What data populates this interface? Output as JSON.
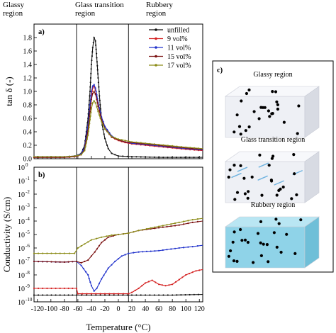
{
  "regions": [
    "Glassy\nregion",
    "Glass transition\nregion",
    "Rubbery\nregion"
  ],
  "region_boundaries": [
    -62,
    15
  ],
  "panel_labels": [
    "a)",
    "b)",
    "c)"
  ],
  "colors": {
    "unfilled": "#111111",
    "9 vol%": "#d42020",
    "11 vol%": "#2233cc",
    "15 vol%": "#7a1010",
    "17 vol%": "#8c8c18",
    "box_light": "#eef0f5",
    "box_blue": "#8fd3e8"
  },
  "chart_data": [
    {
      "type": "line",
      "panel": "a)",
      "ylabel": "tan δ (-)",
      "xlim": [
        -125,
        125
      ],
      "ylim": [
        0,
        2.0
      ],
      "xticks": [
        -120,
        -100,
        -80,
        -60,
        -40,
        -20,
        0,
        20,
        40,
        60,
        80,
        100,
        120
      ],
      "yticks": [
        0.0,
        0.2,
        0.4,
        0.6,
        0.8,
        1.0,
        1.2,
        1.4,
        1.6,
        1.8
      ],
      "yticklabels": [
        "0.0",
        "0.2",
        "0.4",
        "0.6",
        "0.8",
        "1.0",
        "1.2",
        "1.4",
        "1.6",
        "1.8"
      ],
      "legend_position": "top-right",
      "series": [
        {
          "name": "unfilled",
          "points": [
            [
              -125,
              0.02
            ],
            [
              -80,
              0.02
            ],
            [
              -65,
              0.03
            ],
            [
              -55,
              0.08
            ],
            [
              -50,
              0.2
            ],
            [
              -45,
              0.6
            ],
            [
              -42,
              1.0
            ],
            [
              -40,
              1.4
            ],
            [
              -38,
              1.65
            ],
            [
              -36,
              1.8
            ],
            [
              -34,
              1.75
            ],
            [
              -32,
              1.5
            ],
            [
              -30,
              1.2
            ],
            [
              -27,
              0.8
            ],
            [
              -24,
              0.5
            ],
            [
              -20,
              0.3
            ],
            [
              -15,
              0.15
            ],
            [
              -10,
              0.08
            ],
            [
              0,
              0.04
            ],
            [
              20,
              0.03
            ],
            [
              60,
              0.02
            ],
            [
              125,
              0.02
            ]
          ]
        },
        {
          "name": "9 vol%",
          "points": [
            [
              -125,
              0.02
            ],
            [
              -80,
              0.02
            ],
            [
              -65,
              0.03
            ],
            [
              -55,
              0.06
            ],
            [
              -50,
              0.15
            ],
            [
              -45,
              0.45
            ],
            [
              -42,
              0.75
            ],
            [
              -40,
              0.95
            ],
            [
              -38,
              1.05
            ],
            [
              -36,
              1.08
            ],
            [
              -34,
              1.02
            ],
            [
              -32,
              0.92
            ],
            [
              -30,
              0.8
            ],
            [
              -25,
              0.6
            ],
            [
              -20,
              0.45
            ],
            [
              -10,
              0.32
            ],
            [
              0,
              0.27
            ],
            [
              10,
              0.24
            ],
            [
              20,
              0.22
            ],
            [
              40,
              0.2
            ],
            [
              60,
              0.18
            ],
            [
              80,
              0.16
            ],
            [
              100,
              0.14
            ],
            [
              125,
              0.12
            ]
          ]
        },
        {
          "name": "11 vol%",
          "points": [
            [
              -125,
              0.03
            ],
            [
              -80,
              0.03
            ],
            [
              -65,
              0.04
            ],
            [
              -55,
              0.07
            ],
            [
              -50,
              0.17
            ],
            [
              -45,
              0.5
            ],
            [
              -42,
              0.8
            ],
            [
              -40,
              1.0
            ],
            [
              -38,
              1.08
            ],
            [
              -36,
              1.1
            ],
            [
              -34,
              1.05
            ],
            [
              -32,
              0.95
            ],
            [
              -30,
              0.83
            ],
            [
              -25,
              0.62
            ],
            [
              -20,
              0.48
            ],
            [
              -10,
              0.34
            ],
            [
              0,
              0.28
            ],
            [
              10,
              0.25
            ],
            [
              20,
              0.23
            ],
            [
              40,
              0.21
            ],
            [
              60,
              0.19
            ],
            [
              80,
              0.17
            ],
            [
              100,
              0.15
            ],
            [
              125,
              0.13
            ]
          ]
        },
        {
          "name": "15 vol%",
          "points": [
            [
              -125,
              0.02
            ],
            [
              -80,
              0.02
            ],
            [
              -65,
              0.03
            ],
            [
              -55,
              0.06
            ],
            [
              -50,
              0.14
            ],
            [
              -45,
              0.42
            ],
            [
              -42,
              0.7
            ],
            [
              -40,
              0.88
            ],
            [
              -38,
              0.97
            ],
            [
              -36,
              1.0
            ],
            [
              -34,
              0.96
            ],
            [
              -32,
              0.88
            ],
            [
              -30,
              0.78
            ],
            [
              -25,
              0.58
            ],
            [
              -20,
              0.45
            ],
            [
              -10,
              0.32
            ],
            [
              0,
              0.28
            ],
            [
              10,
              0.25
            ],
            [
              20,
              0.24
            ],
            [
              40,
              0.22
            ],
            [
              60,
              0.2
            ],
            [
              80,
              0.18
            ],
            [
              100,
              0.16
            ],
            [
              125,
              0.14
            ]
          ]
        },
        {
          "name": "17 vol%",
          "points": [
            [
              -125,
              0.03
            ],
            [
              -80,
              0.03
            ],
            [
              -65,
              0.04
            ],
            [
              -55,
              0.06
            ],
            [
              -50,
              0.12
            ],
            [
              -45,
              0.35
            ],
            [
              -42,
              0.58
            ],
            [
              -40,
              0.74
            ],
            [
              -38,
              0.83
            ],
            [
              -36,
              0.86
            ],
            [
              -34,
              0.83
            ],
            [
              -32,
              0.77
            ],
            [
              -30,
              0.7
            ],
            [
              -25,
              0.55
            ],
            [
              -20,
              0.44
            ],
            [
              -10,
              0.33
            ],
            [
              0,
              0.29
            ],
            [
              10,
              0.27
            ],
            [
              20,
              0.25
            ],
            [
              40,
              0.23
            ],
            [
              60,
              0.21
            ],
            [
              80,
              0.19
            ],
            [
              100,
              0.17
            ],
            [
              125,
              0.15
            ]
          ]
        }
      ]
    },
    {
      "type": "line",
      "panel": "b)",
      "xlabel": "Temperature (°C)",
      "ylabel": "Conductivity (S/cm)",
      "yscale": "log",
      "xlim": [
        -125,
        125
      ],
      "ylim_exponent": [
        -10,
        0
      ],
      "xticks": [
        -120,
        -100,
        -80,
        -60,
        -40,
        -20,
        0,
        20,
        40,
        60,
        80,
        100,
        120
      ],
      "yticks_exponent": [
        -10,
        -9,
        -8,
        -7,
        -6,
        -5,
        -4,
        -3,
        -2,
        -1,
        0
      ],
      "yticklabels": [
        "10",
        "10",
        "10",
        "10",
        "10",
        "10",
        "10",
        "10",
        "10",
        "10",
        "10"
      ],
      "yticklabel_exponents": [
        "-10",
        "-9",
        "-8",
        "-7",
        "-6",
        "-5",
        "-4",
        "-3",
        "-2",
        "-1",
        "0"
      ],
      "series": [
        {
          "name": "unfilled",
          "points_log10": [
            [
              -125,
              -9.5
            ],
            [
              -80,
              -9.5
            ],
            [
              -62,
              -9.5
            ],
            [
              -40,
              -9.5
            ],
            [
              0,
              -9.5
            ],
            [
              40,
              -9.5
            ],
            [
              80,
              -9.5
            ],
            [
              125,
              -9.45
            ]
          ]
        },
        {
          "name": "9 vol%",
          "points_log10": [
            [
              -125,
              -9.0
            ],
            [
              -80,
              -9.0
            ],
            [
              -62,
              -9.0
            ],
            [
              -60,
              -9.4
            ],
            [
              -40,
              -9.4
            ],
            [
              0,
              -9.4
            ],
            [
              15,
              -9.4
            ],
            [
              20,
              -9.3
            ],
            [
              30,
              -9.0
            ],
            [
              40,
              -8.6
            ],
            [
              50,
              -8.4
            ],
            [
              60,
              -8.7
            ],
            [
              70,
              -8.8
            ],
            [
              80,
              -8.7
            ],
            [
              100,
              -8.0
            ],
            [
              115,
              -7.7
            ],
            [
              125,
              -7.6
            ]
          ]
        },
        {
          "name": "11 vol%",
          "points_log10": [
            [
              -125,
              -7.0
            ],
            [
              -80,
              -7.05
            ],
            [
              -62,
              -7.0
            ],
            [
              -55,
              -7.3
            ],
            [
              -45,
              -8.0
            ],
            [
              -40,
              -8.8
            ],
            [
              -36,
              -9.2
            ],
            [
              -32,
              -9.0
            ],
            [
              -25,
              -8.3
            ],
            [
              -15,
              -7.5
            ],
            [
              -5,
              -7.0
            ],
            [
              5,
              -6.6
            ],
            [
              15,
              -6.4
            ],
            [
              30,
              -6.3
            ],
            [
              60,
              -6.2
            ],
            [
              90,
              -6.0
            ],
            [
              110,
              -5.9
            ],
            [
              125,
              -5.8
            ]
          ]
        },
        {
          "name": "15 vol%",
          "points_log10": [
            [
              -125,
              -7.0
            ],
            [
              -80,
              -7.05
            ],
            [
              -62,
              -7.0
            ],
            [
              -55,
              -7.1
            ],
            [
              -45,
              -6.9
            ],
            [
              -35,
              -6.3
            ],
            [
              -25,
              -5.6
            ],
            [
              -15,
              -5.2
            ],
            [
              0,
              -5.0
            ],
            [
              15,
              -4.9
            ],
            [
              30,
              -4.7
            ],
            [
              60,
              -4.5
            ],
            [
              90,
              -4.3
            ],
            [
              110,
              -4.1
            ],
            [
              125,
              -4.0
            ]
          ]
        },
        {
          "name": "17 vol%",
          "points_log10": [
            [
              -125,
              -6.4
            ],
            [
              -80,
              -6.4
            ],
            [
              -65,
              -6.4
            ],
            [
              -60,
              -6.0
            ],
            [
              -50,
              -5.7
            ],
            [
              -40,
              -5.4
            ],
            [
              -25,
              -5.2
            ],
            [
              -10,
              -5.05
            ],
            [
              0,
              -5.0
            ],
            [
              15,
              -4.9
            ],
            [
              30,
              -4.7
            ],
            [
              60,
              -4.4
            ],
            [
              90,
              -4.1
            ],
            [
              110,
              -3.9
            ],
            [
              125,
              -3.8
            ]
          ]
        }
      ]
    }
  ],
  "schematic": [
    {
      "title": "Glassy region",
      "style": "light",
      "streaks": false
    },
    {
      "title": "Glass transition region",
      "style": "light",
      "streaks": true
    },
    {
      "title": "Rubbery region",
      "style": "blue",
      "streaks": false
    }
  ]
}
